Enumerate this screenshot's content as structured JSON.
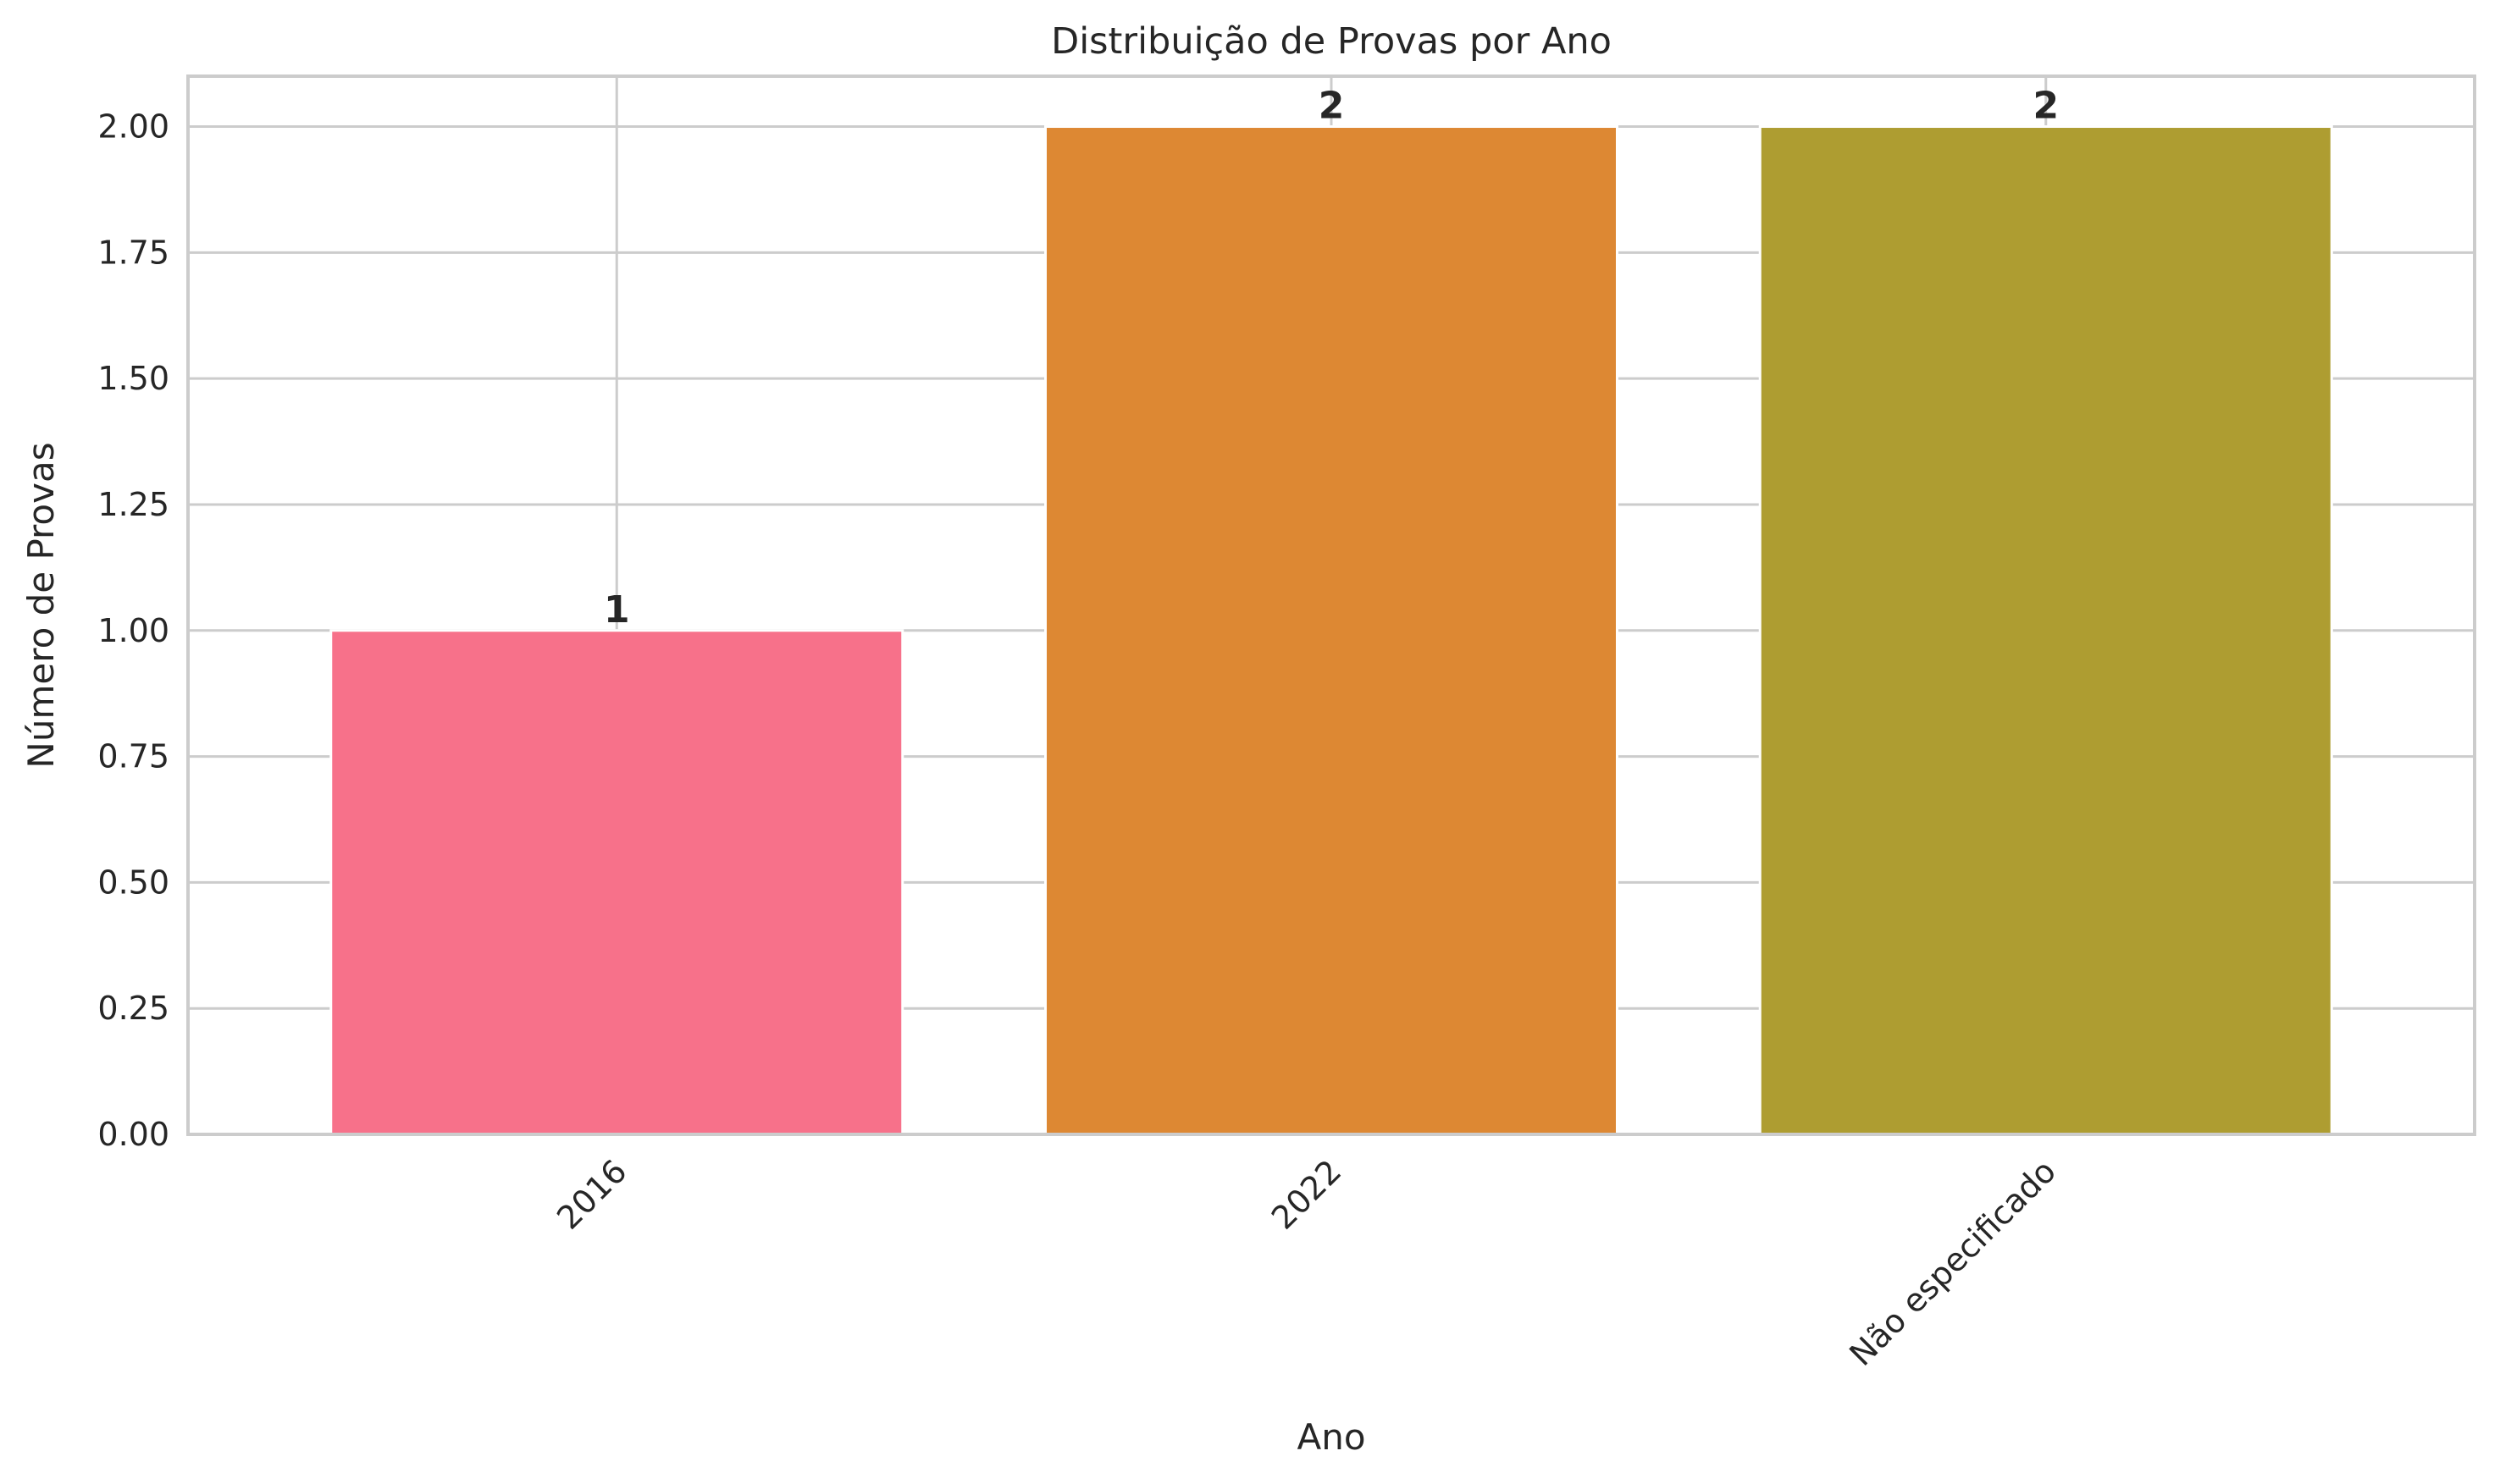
{
  "chart_data": {
    "type": "bar",
    "title": "Distribuição de Provas por Ano",
    "xlabel": "Ano",
    "ylabel": "Número de Provas",
    "categories": [
      "2016",
      "2022",
      "Não especificado"
    ],
    "values": [
      1,
      2,
      2
    ],
    "value_labels": [
      "1",
      "2",
      "2"
    ],
    "colors": [
      "#f7718a",
      "#dd8833",
      "#ae9d31"
    ],
    "ylim": [
      0,
      2.1
    ],
    "yticks": [
      0,
      0.25,
      0.5,
      0.75,
      1.0,
      1.25,
      1.5,
      1.75,
      2.0
    ],
    "ytick_labels": [
      "0.00",
      "0.25",
      "0.50",
      "0.75",
      "1.00",
      "1.25",
      "1.50",
      "1.75",
      "2.00"
    ],
    "grid": true,
    "xtick_rotation": "45 degrees",
    "grid_color": "#cccccc",
    "axes_edge_color": "#cccccc"
  }
}
